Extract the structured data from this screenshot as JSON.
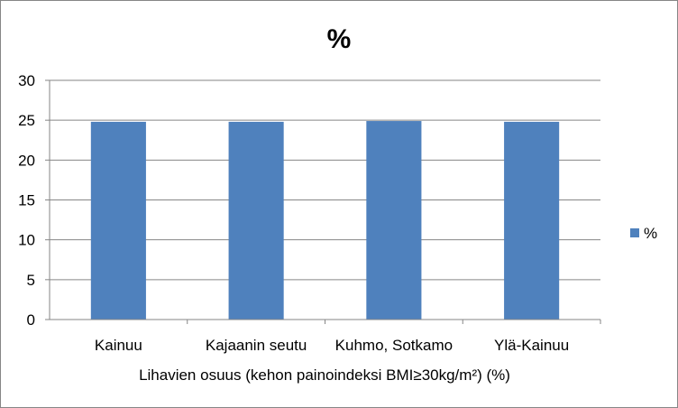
{
  "chart_data": {
    "type": "bar",
    "title": "%",
    "categories": [
      "Kainuu",
      "Kajaanin seutu",
      "Kuhmo, Sotkamo",
      "Ylä-Kainuu"
    ],
    "series": [
      {
        "name": "%",
        "values": [
          24.8,
          24.8,
          24.9,
          24.8
        ],
        "color": "#4f81bd"
      }
    ],
    "xlabel": "Lihavien osuus (kehon painoindeksi BMI≥30kg/m²) (%)",
    "ylabel": "",
    "ylim": [
      0,
      30
    ],
    "yticks": [
      "0",
      "5",
      "10",
      "15",
      "20",
      "25",
      "30"
    ],
    "grid": true,
    "legend_position": "right",
    "gridline_color": "#868686"
  }
}
